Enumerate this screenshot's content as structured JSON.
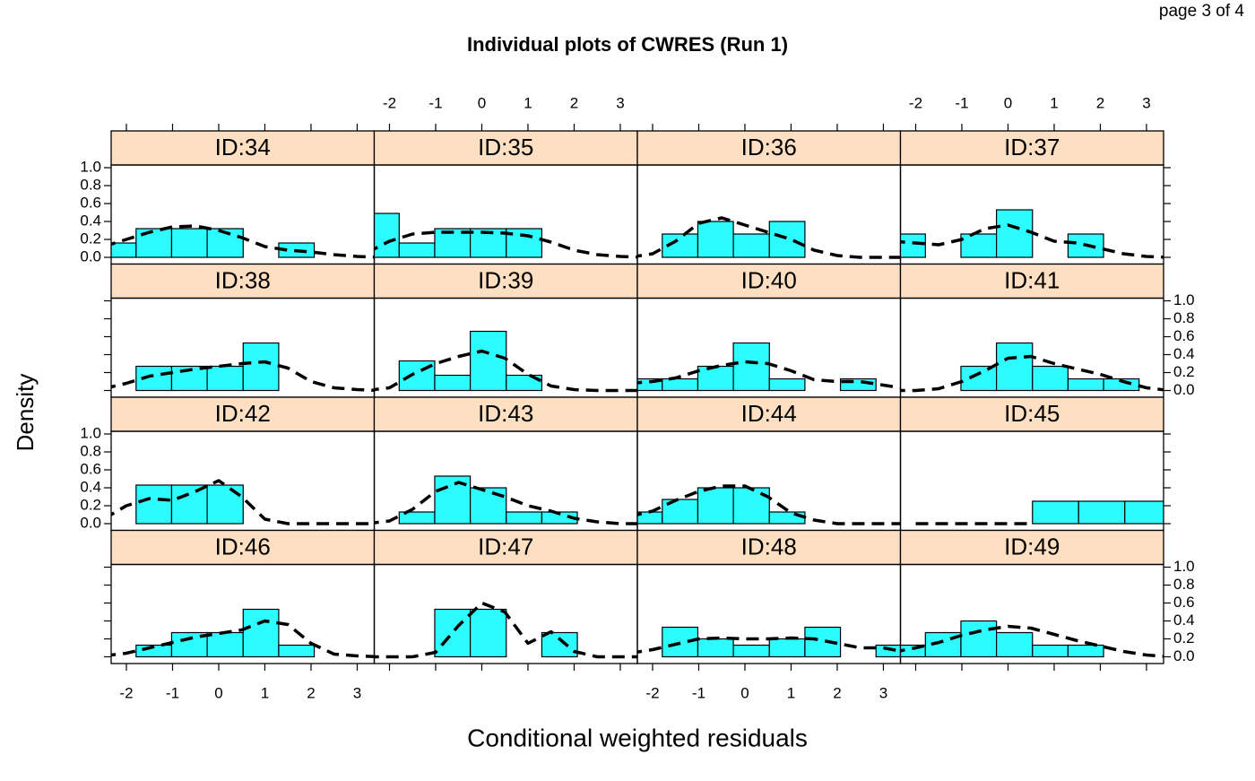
{
  "chart_data": {
    "type": "histogram",
    "page_label": "page 3 of 4",
    "title": "Individual plots of CWRES (Run 1)",
    "xlabel": "Conditional weighted residuals",
    "ylabel": "Density",
    "bar_color": "#2cfbff",
    "strip_color": "#fedfc1",
    "line_color": "#000000",
    "xlim": [
      -2.33,
      3.37
    ],
    "ylim": [
      -0.075,
      1.03
    ],
    "xticks": [
      -2,
      -1,
      0,
      1,
      2,
      3
    ],
    "yticks": [
      {
        "value": 0,
        "label": "0.0"
      },
      {
        "value": 0.2,
        "label": "0.2"
      },
      {
        "value": 0.4,
        "label": "0.4"
      },
      {
        "value": 0.6,
        "label": "0.6"
      },
      {
        "value": 0.8,
        "label": "0.8"
      },
      {
        "value": 1,
        "label": "1.0"
      }
    ],
    "bins": [
      -2.56,
      -1.79,
      -1.02,
      -0.25,
      0.53,
      1.3,
      2.07,
      2.84,
      3.61
    ],
    "density_x": [
      -2.5,
      -2,
      -1.5,
      -1,
      -0.5,
      0,
      0.5,
      1,
      1.5,
      2,
      2.5,
      3,
      3.5
    ],
    "panels": [
      {
        "name": "ID:34",
        "values": [
          0.16,
          0.32,
          0.32,
          0.32,
          0,
          0.16,
          0,
          0
        ],
        "density": [
          0.12,
          0.2,
          0.28,
          0.34,
          0.35,
          0.3,
          0.22,
          0.12,
          0.08,
          0.06,
          0.03,
          0.01,
          0
        ]
      },
      {
        "name": "ID:35",
        "values": [
          0.49,
          0.16,
          0.32,
          0.32,
          0.32,
          0,
          0,
          0
        ],
        "density": [
          0.05,
          0.18,
          0.26,
          0.28,
          0.28,
          0.28,
          0.27,
          0.24,
          0.17,
          0.08,
          0.03,
          0.01,
          0
        ]
      },
      {
        "name": "ID:36",
        "values": [
          0,
          0.26,
          0.4,
          0.26,
          0.4,
          0,
          0,
          0
        ],
        "density": [
          0,
          0.04,
          0.18,
          0.38,
          0.44,
          0.36,
          0.28,
          0.2,
          0.08,
          0.02,
          0,
          0,
          0
        ]
      },
      {
        "name": "ID:37",
        "values": [
          0.26,
          0,
          0.26,
          0.53,
          0,
          0.26,
          0,
          0
        ],
        "density": [
          0.18,
          0.16,
          0.14,
          0.2,
          0.32,
          0.36,
          0.28,
          0.18,
          0.16,
          0.1,
          0.04,
          0.01,
          0
        ]
      },
      {
        "name": "ID:38",
        "values": [
          0,
          0.27,
          0.27,
          0.27,
          0.53,
          0,
          0,
          0
        ],
        "density": [
          0.02,
          0.08,
          0.16,
          0.2,
          0.24,
          0.27,
          0.3,
          0.32,
          0.25,
          0.1,
          0.03,
          0.01,
          0
        ]
      },
      {
        "name": "ID:39",
        "values": [
          0,
          0.33,
          0.17,
          0.66,
          0.17,
          0,
          0,
          0
        ],
        "density": [
          0,
          0.03,
          0.18,
          0.3,
          0.38,
          0.44,
          0.36,
          0.18,
          0.05,
          0.01,
          0,
          0,
          0
        ]
      },
      {
        "name": "ID:40",
        "values": [
          0.13,
          0.13,
          0.27,
          0.53,
          0.13,
          0,
          0.13,
          0
        ],
        "density": [
          0.08,
          0.1,
          0.14,
          0.22,
          0.28,
          0.32,
          0.3,
          0.22,
          0.12,
          0.1,
          0.1,
          0.06,
          0.02
        ]
      },
      {
        "name": "ID:41",
        "values": [
          0,
          0,
          0.27,
          0.53,
          0.27,
          0.13,
          0.13,
          0
        ],
        "density": [
          0,
          0,
          0.02,
          0.1,
          0.22,
          0.36,
          0.38,
          0.3,
          0.24,
          0.18,
          0.1,
          0.03,
          0
        ]
      },
      {
        "name": "ID:42",
        "values": [
          0,
          0.43,
          0.43,
          0.43,
          0,
          0,
          0,
          0
        ],
        "density": [
          0.05,
          0.2,
          0.28,
          0.26,
          0.36,
          0.48,
          0.3,
          0.05,
          0,
          0,
          0,
          0,
          0
        ]
      },
      {
        "name": "ID:43",
        "values": [
          0,
          0.13,
          0.53,
          0.4,
          0.13,
          0.13,
          0,
          0
        ],
        "density": [
          0,
          0.03,
          0.16,
          0.36,
          0.46,
          0.38,
          0.3,
          0.2,
          0.14,
          0.06,
          0.02,
          0,
          0
        ]
      },
      {
        "name": "ID:44",
        "values": [
          0.13,
          0.27,
          0.4,
          0.4,
          0.13,
          0,
          0,
          0
        ],
        "density": [
          0.08,
          0.14,
          0.26,
          0.36,
          0.42,
          0.42,
          0.3,
          0.12,
          0.04,
          0,
          0,
          0,
          0
        ]
      },
      {
        "name": "ID:45",
        "bins": [
          0.53,
          1.53,
          2.53,
          3.53
        ],
        "values": [
          0.25,
          0.25,
          0.25
        ],
        "density": [
          null,
          0,
          0,
          0,
          0,
          0,
          0,
          null,
          null,
          null,
          null,
          null,
          null
        ]
      },
      {
        "name": "ID:46",
        "values": [
          0,
          0.13,
          0.27,
          0.27,
          0.53,
          0.13,
          0,
          0
        ],
        "density": [
          0.01,
          0.04,
          0.1,
          0.16,
          0.22,
          0.26,
          0.3,
          0.4,
          0.36,
          0.15,
          0.03,
          0.01,
          0
        ]
      },
      {
        "name": "ID:47",
        "values": [
          0,
          0,
          0.53,
          0.53,
          0,
          0.27,
          0,
          0
        ],
        "density": [
          0,
          0,
          0,
          0.05,
          0.35,
          0.6,
          0.5,
          0.15,
          0.28,
          0.06,
          0,
          0,
          0
        ]
      },
      {
        "name": "ID:48",
        "values": [
          0,
          0.33,
          0.2,
          0.13,
          0.2,
          0.33,
          0,
          0.13
        ],
        "density": [
          0.04,
          0.08,
          0.14,
          0.2,
          0.21,
          0.2,
          0.2,
          0.21,
          0.2,
          0.15,
          0.1,
          0.1,
          0.05
        ]
      },
      {
        "name": "ID:49",
        "values": [
          0.13,
          0.27,
          0.4,
          0.27,
          0.13,
          0.13,
          0,
          0
        ],
        "density": [
          0.05,
          0.1,
          0.16,
          0.24,
          0.3,
          0.34,
          0.32,
          0.25,
          0.18,
          0.12,
          0.06,
          0.02,
          0
        ]
      }
    ]
  }
}
